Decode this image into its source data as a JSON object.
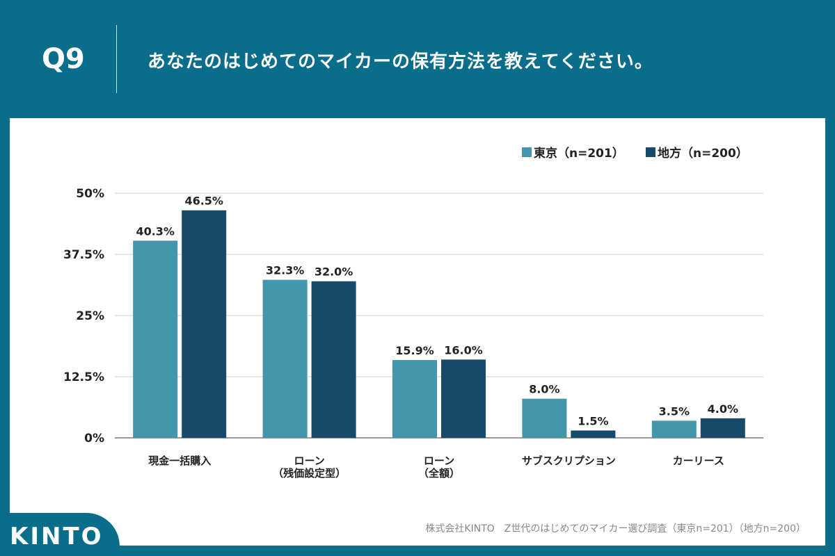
{
  "header": {
    "question": "Q9",
    "title": "あなたのはじめてのマイカーの保有方法を教えてください。"
  },
  "logo": "KINTO",
  "source": "株式会社KINTO　Z世代のはじめてのマイカー選び調査（東京n=201）（地方n=200）",
  "chart_data": {
    "type": "bar",
    "categories": [
      "現金一括購入",
      "ローン\n（残価設定型）",
      "ローン\n（全額）",
      "サブスクリプション",
      "カーリース"
    ],
    "series": [
      {
        "name": "東京（n=201）",
        "color": "#4396ab",
        "values": [
          40.3,
          32.3,
          15.9,
          8.0,
          3.5
        ]
      },
      {
        "name": "地方（n=200）",
        "color": "#17496a",
        "values": [
          46.5,
          32.0,
          16.0,
          1.5,
          4.0
        ]
      }
    ],
    "yticks": [
      "0%",
      "12.5%",
      "25%",
      "37.5%",
      "50%"
    ],
    "ylim": [
      0,
      50
    ],
    "grid": true,
    "legend": "top-right"
  }
}
